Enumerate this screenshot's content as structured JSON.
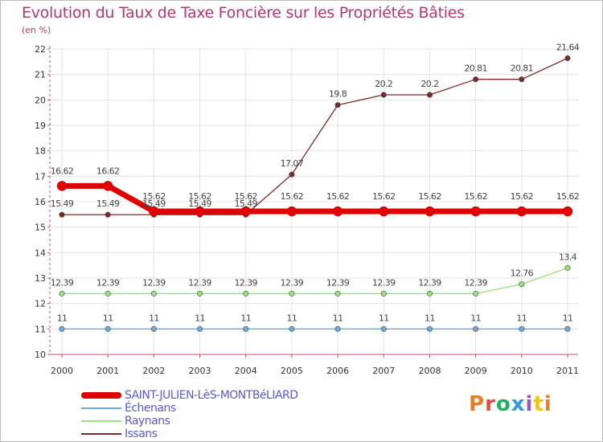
{
  "header": {
    "title": "Evolution du Taux de Taxe Foncière sur les Propriétés Bâties",
    "unit": "(en %)"
  },
  "brand": {
    "name": "Proxiti",
    "colors": [
      "#e67e22",
      "#e74c3c",
      "#27ae60",
      "#3498db",
      "#9b59b6",
      "#f1c40f",
      "#e67e22"
    ]
  },
  "chart_data": {
    "type": "line",
    "title": "Evolution du Taux de Taxe Foncière sur les Propriétés Bâties",
    "ylabel": "(en %)",
    "xlabel": "",
    "ylim": [
      10,
      22
    ],
    "yticks": [
      "10",
      "11",
      "12",
      "13",
      "14",
      "15",
      "16",
      "17",
      "18",
      "19",
      "20",
      "21",
      "22"
    ],
    "categories": [
      "2000",
      "2001",
      "2002",
      "2003",
      "2004",
      "2005",
      "2006",
      "2007",
      "2008",
      "2009",
      "2010",
      "2011"
    ],
    "series": [
      {
        "name": "SAINT-JULIEN-LèS-MONTBéLIARD",
        "color": "#e00000",
        "values": [
          16.62,
          16.62,
          15.62,
          15.62,
          15.62,
          15.62,
          15.62,
          15.62,
          15.62,
          15.62,
          15.62,
          15.62
        ],
        "labels": [
          "16.62",
          "16.62",
          "15.62",
          "15.62",
          "15.62",
          "15.62",
          "15.62",
          "15.62",
          "15.62",
          "15.62",
          "15.62",
          "15.62"
        ]
      },
      {
        "name": "Échenans",
        "color": "#6fa8dc",
        "values": [
          11,
          11,
          11,
          11,
          11,
          11,
          11,
          11,
          11,
          11,
          11,
          11
        ],
        "labels": [
          "11",
          "11",
          "11",
          "11",
          "11",
          "11",
          "11",
          "11",
          "11",
          "11",
          "11",
          "11"
        ]
      },
      {
        "name": "Raynans",
        "color": "#9be07a",
        "values": [
          12.39,
          12.39,
          12.39,
          12.39,
          12.39,
          12.39,
          12.39,
          12.39,
          12.39,
          12.39,
          12.76,
          13.4
        ],
        "labels": [
          "12.39",
          "12.39",
          "12.39",
          "12.39",
          "12.39",
          "12.39",
          "12.39",
          "12.39",
          "12.39",
          "12.39",
          "12.76",
          "13.4"
        ]
      },
      {
        "name": "Issans",
        "color": "#7a2a2a",
        "values": [
          15.49,
          15.49,
          15.49,
          15.49,
          15.49,
          17.07,
          19.8,
          20.2,
          20.2,
          20.81,
          20.81,
          21.64
        ],
        "labels": [
          "15.49",
          "15.49",
          "15.49",
          "15.49",
          "15.49",
          "17.07",
          "19.8",
          "20.2",
          "20.2",
          "20.81",
          "20.81",
          "21.64"
        ]
      }
    ]
  }
}
